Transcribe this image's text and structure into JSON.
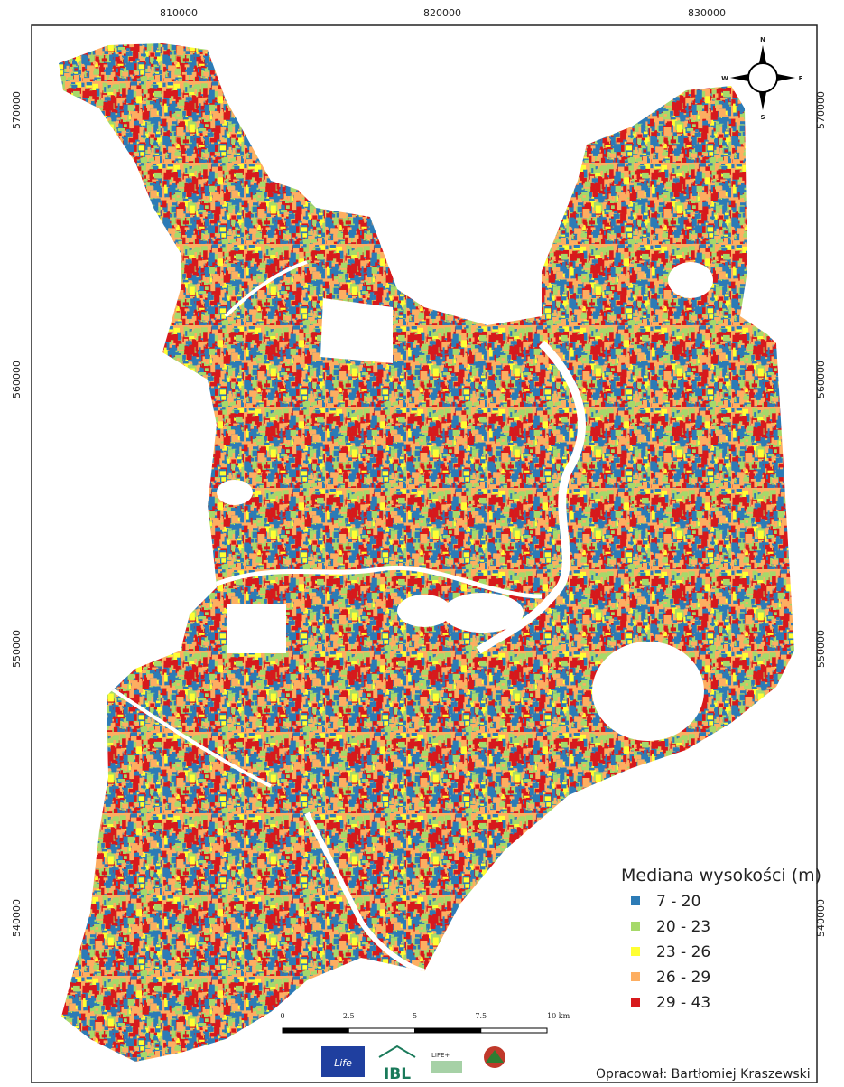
{
  "map": {
    "x_axis": {
      "labels": [
        "810000",
        "820000",
        "830000"
      ]
    },
    "y_axis": {
      "labels": [
        "570000",
        "560000",
        "550000",
        "540000"
      ]
    },
    "compass": {
      "n": "N",
      "e": "E",
      "s": "S",
      "w": "W"
    },
    "legend": {
      "title": "Mediana wysokości (m)",
      "items": [
        {
          "label": "7 - 20",
          "color": "#2c7bb6"
        },
        {
          "label": "20 - 23",
          "color": "#a6d96a"
        },
        {
          "label": "23 - 26",
          "color": "#ffff33"
        },
        {
          "label": "26 - 29",
          "color": "#fdae61"
        },
        {
          "label": "29 - 43",
          "color": "#d7191c"
        }
      ]
    },
    "scale_bar": {
      "labels": [
        "0",
        "2.5",
        "5",
        "7.5",
        "10 km"
      ]
    },
    "logos": {
      "eu": "Life",
      "ibl": "IBL",
      "life_plus": "LIFE+"
    },
    "credit": "Opracował: Bartłomiej Kraszewski"
  }
}
